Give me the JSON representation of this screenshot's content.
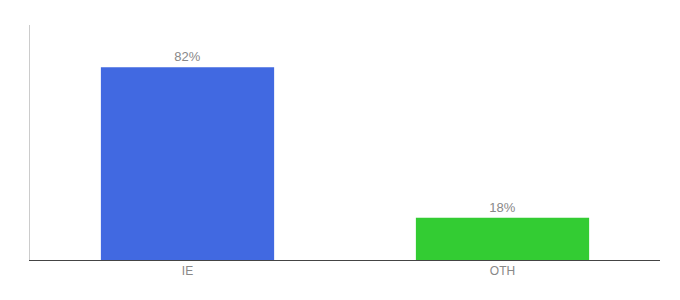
{
  "chart_data": {
    "type": "bar",
    "categories": [
      "IE",
      "OTH"
    ],
    "values": [
      82,
      18
    ],
    "value_labels": [
      "82%",
      "18%"
    ],
    "colors": [
      "#4169e1",
      "#33cc33"
    ],
    "ylim": [
      0,
      100
    ],
    "grid": false,
    "data_labels": true,
    "tick_labels": "x"
  }
}
